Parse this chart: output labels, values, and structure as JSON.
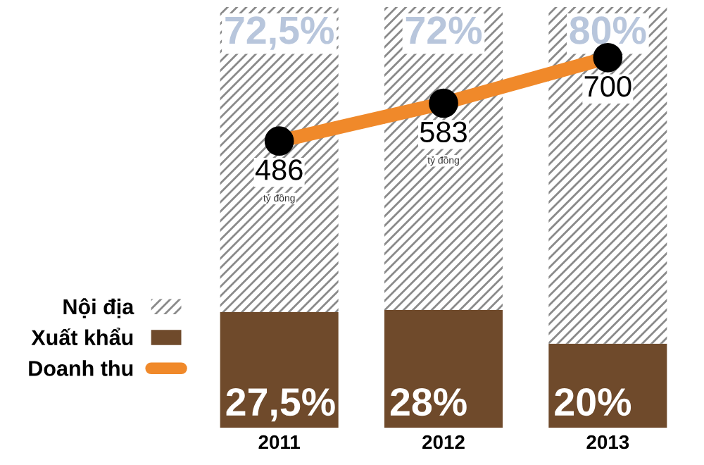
{
  "chart_data": {
    "type": "bar",
    "stacked": true,
    "categories": [
      "2011",
      "2012",
      "2013"
    ],
    "ylim": [
      0,
      100
    ],
    "tick_labels": "x",
    "legend": "left",
    "grid": false,
    "series": [
      {
        "name": "Xuất khẩu",
        "color": "#6f4a2b",
        "values": [
          27.5,
          28,
          20
        ],
        "value_labels": [
          "27,5%",
          "28%",
          "20%"
        ]
      },
      {
        "name": "Nội địa",
        "color": "#8a8a8a",
        "values": [
          72.5,
          72,
          80
        ],
        "value_labels": [
          "72,5%",
          "72%",
          "80%"
        ]
      },
      {
        "name": "Doanh thu",
        "type": "line",
        "axis": "y2",
        "color": "#f0892a",
        "marker": "circle",
        "values": [
          486,
          583,
          700
        ],
        "value_labels": [
          "486",
          "583",
          "700"
        ]
      }
    ],
    "y2lim": [
      -250,
      830
    ],
    "annotations": [
      "tỷ đồng",
      "tỷ đồng"
    ]
  }
}
